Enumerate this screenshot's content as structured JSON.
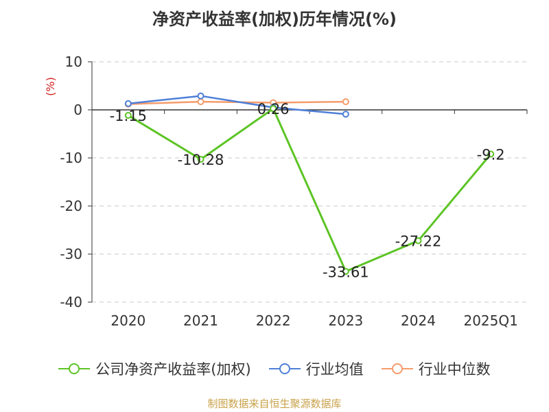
{
  "title": "净资产收益率(加权)历年情况(%)",
  "source": "制图数据来自恒生聚源数据库",
  "chart_data": {
    "type": "line",
    "title": "净资产收益率(加权)历年情况(%)",
    "ylabel": "(%)",
    "ylim": [
      -40,
      10
    ],
    "yticks": [
      10,
      0,
      -10,
      -20,
      -30,
      -40
    ],
    "grid": true,
    "legend_position": "bottom",
    "categories": [
      "2020",
      "2021",
      "2022",
      "2023",
      "2024",
      "2025Q1"
    ],
    "series": [
      {
        "name": "公司净资产收益率(加权)",
        "color": "#5cc424",
        "values": [
          -1.15,
          -10.28,
          0.26,
          -33.61,
          -27.22,
          -9.2
        ],
        "labels": [
          "-1.15",
          "-10.28",
          "0.26",
          "-33.61",
          "-27.22",
          "-9.2"
        ]
      },
      {
        "name": "行业均值",
        "color": "#4e7fd8",
        "values": [
          1.3,
          2.9,
          0.5,
          -0.9,
          null,
          null
        ]
      },
      {
        "name": "行业中位数",
        "color": "#f59b6a",
        "values": [
          1.2,
          1.7,
          1.5,
          1.7,
          null,
          null
        ]
      }
    ]
  }
}
